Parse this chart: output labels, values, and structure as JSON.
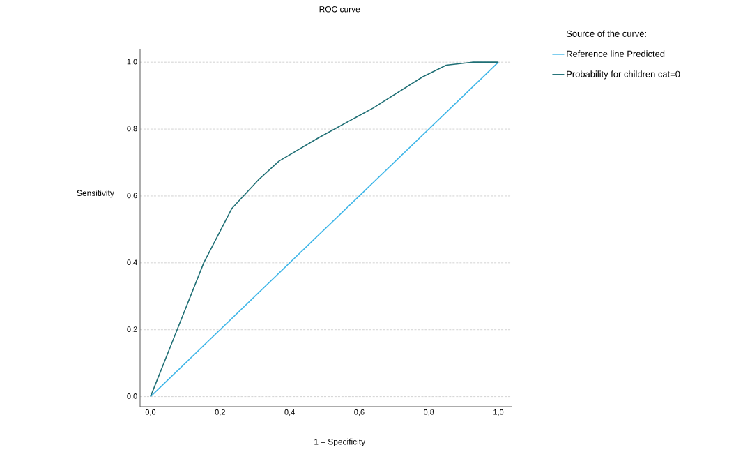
{
  "chart_data": {
    "type": "line",
    "title": "ROC curve",
    "xlabel": "1 – Specificity",
    "ylabel": "Sensitivity",
    "legend_title": "Source of the curve:",
    "xlim": [
      -0.03,
      1.04
    ],
    "ylim": [
      -0.03,
      1.04
    ],
    "xticks": [
      {
        "value": 0,
        "label": "0,0"
      },
      {
        "value": 0.2,
        "label": "0,2"
      },
      {
        "value": 0.4,
        "label": "0,4"
      },
      {
        "value": 0.6,
        "label": "0,6"
      },
      {
        "value": 0.8,
        "label": "0,8"
      },
      {
        "value": 1,
        "label": "1,0"
      }
    ],
    "yticks": [
      {
        "value": 0,
        "label": "0,0"
      },
      {
        "value": 0.2,
        "label": "0,2"
      },
      {
        "value": 0.4,
        "label": "0,4"
      },
      {
        "value": 0.6,
        "label": "0,6"
      },
      {
        "value": 0.8,
        "label": "0,8"
      },
      {
        "value": 1,
        "label": "1,0"
      }
    ],
    "series": [
      {
        "name": "Reference line Predicted",
        "color": "#3fb6e8",
        "x": [
          0,
          1
        ],
        "values": [
          0,
          1
        ]
      },
      {
        "name": "Probability for children cat=0",
        "color": "#1f6f75",
        "x": [
          0,
          0.153,
          0.234,
          0.31,
          0.369,
          0.483,
          0.64,
          0.782,
          0.85,
          0.925,
          1
        ],
        "values": [
          0,
          0.4,
          0.563,
          0.648,
          0.704,
          0.774,
          0.863,
          0.956,
          0.991,
          1,
          1
        ]
      }
    ],
    "grid": "y",
    "legend": "right",
    "marker": "none",
    "line_style": "solid"
  }
}
